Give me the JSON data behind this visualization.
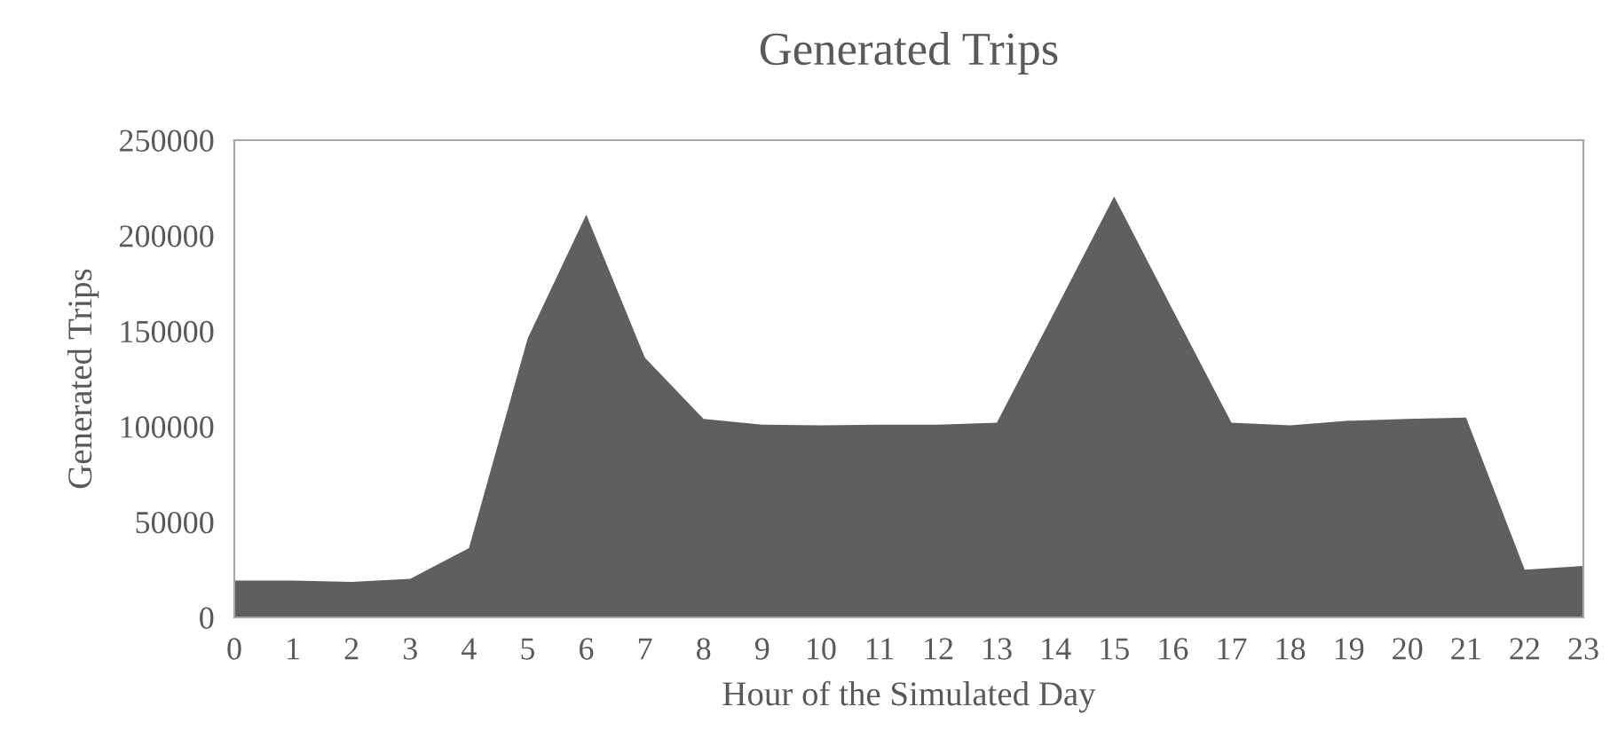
{
  "chart_data": {
    "type": "area",
    "title": "Generated Trips",
    "xlabel": "Hour of the Simulated Day",
    "ylabel": "Generated Trips",
    "categories": [
      "0",
      "1",
      "2",
      "3",
      "4",
      "5",
      "6",
      "7",
      "8",
      "9",
      "10",
      "11",
      "12",
      "13",
      "14",
      "15",
      "16",
      "17",
      "18",
      "19",
      "20",
      "21",
      "22",
      "23"
    ],
    "series": [
      {
        "color": "#5f5f5f",
        "values": [
          19300,
          19300,
          18600,
          20200,
          36300,
          146000,
          211000,
          136000,
          104000,
          101000,
          100600,
          101000,
          101000,
          102000,
          161000,
          220500,
          161000,
          102000,
          100600,
          103000,
          104000,
          104700,
          25000,
          27000
        ]
      }
    ],
    "ylim": [
      0,
      250000
    ],
    "yticks": [
      0,
      50000,
      100000,
      150000,
      200000,
      250000
    ],
    "grid": false,
    "legend": false
  }
}
